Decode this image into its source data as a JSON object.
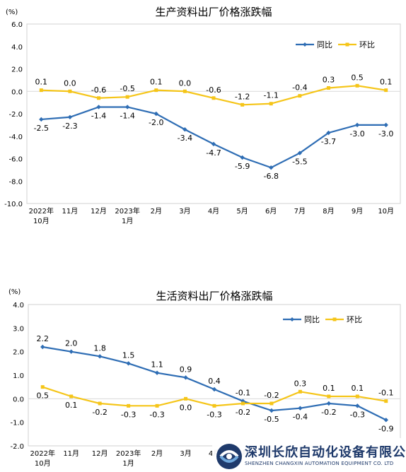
{
  "chart_data": [
    {
      "type": "line",
      "title": "生产资料出厂价格涨跌幅",
      "unit": "(%)",
      "categories": [
        "2022年\n10月",
        "11月",
        "12月",
        "2023年\n1月",
        "2月",
        "3月",
        "4月",
        "5月",
        "6月",
        "7月",
        "8月",
        "9月",
        "10月"
      ],
      "ylim": [
        -10.0,
        6.0
      ],
      "yticks": [
        "6.0",
        "4.0",
        "2.0",
        "0.0",
        "-2.0",
        "-4.0",
        "-6.0",
        "-8.0",
        "-10.0"
      ],
      "legend_position": "top-right",
      "series": [
        {
          "name": "同比",
          "color": "#2e6db4",
          "values": [
            -2.5,
            -2.3,
            -1.4,
            -1.4,
            -2.0,
            -3.4,
            -4.7,
            -5.9,
            -6.8,
            -5.5,
            -3.7,
            -3.0,
            -3.0
          ],
          "labels": [
            "-2.5",
            "-2.3",
            "-1.4",
            "-1.4",
            "-2.0",
            "-3.4",
            "-4.7",
            "-5.9",
            "-6.8",
            "-5.5",
            "-3.7",
            "-3.0",
            "-3.0"
          ]
        },
        {
          "name": "环比",
          "color": "#f5c518",
          "values": [
            0.1,
            0.0,
            -0.6,
            -0.5,
            0.1,
            0.0,
            -0.6,
            -1.2,
            -1.1,
            -0.4,
            0.3,
            0.5,
            0.1
          ],
          "labels": [
            "0.1",
            "0.0",
            "-0.6",
            "-0.5",
            "0.1",
            "0.0",
            "-0.6",
            "-1.2",
            "-1.1",
            "-0.4",
            "0.3",
            "0.5",
            "0.1"
          ]
        }
      ]
    },
    {
      "type": "line",
      "title": "生活资料出厂价格涨跌幅",
      "unit": "(%)",
      "categories": [
        "2022年\n10月",
        "11月",
        "12月",
        "2023年\n1月",
        "2月",
        "3月",
        "4月",
        "5月",
        "6月",
        "7月",
        "8月",
        "9月",
        "10月"
      ],
      "ylim": [
        -2.0,
        4.0
      ],
      "yticks": [
        "4.0",
        "3.0",
        "2.0",
        "1.0",
        "0.0",
        "-1.0",
        "-2.0"
      ],
      "legend_position": "top-right",
      "series": [
        {
          "name": "同比",
          "color": "#2e6db4",
          "values": [
            2.2,
            2.0,
            1.8,
            1.5,
            1.1,
            0.9,
            0.4,
            -0.1,
            -0.5,
            -0.4,
            -0.2,
            -0.3,
            -0.9
          ],
          "labels": [
            "2.2",
            "2.0",
            "1.8",
            "1.5",
            "1.1",
            "0.9",
            "0.4",
            "-0.1",
            "-0.5",
            "-0.4",
            "-0.2",
            "-0.3",
            "-0.9"
          ]
        },
        {
          "name": "环比",
          "color": "#f5c518",
          "values": [
            0.5,
            0.1,
            -0.2,
            -0.3,
            -0.3,
            0.0,
            -0.3,
            -0.2,
            -0.2,
            0.3,
            0.1,
            0.1,
            -0.1
          ],
          "labels": [
            "0.5",
            "0.1",
            "-0.2",
            "-0.3",
            "-0.3",
            "0.0",
            "-0.3",
            "-0.2",
            "-0.2",
            "0.3",
            "0.1",
            "0.1",
            "-0.1"
          ]
        }
      ]
    }
  ],
  "watermark": {
    "company_cn": "深圳长欣自动化设备有限公司",
    "company_en": "SHENZHEN CHANGXIN AUTOMATION EQUIPMENT CO. LTD",
    "logo_icon": "changxin-logo-icon"
  }
}
